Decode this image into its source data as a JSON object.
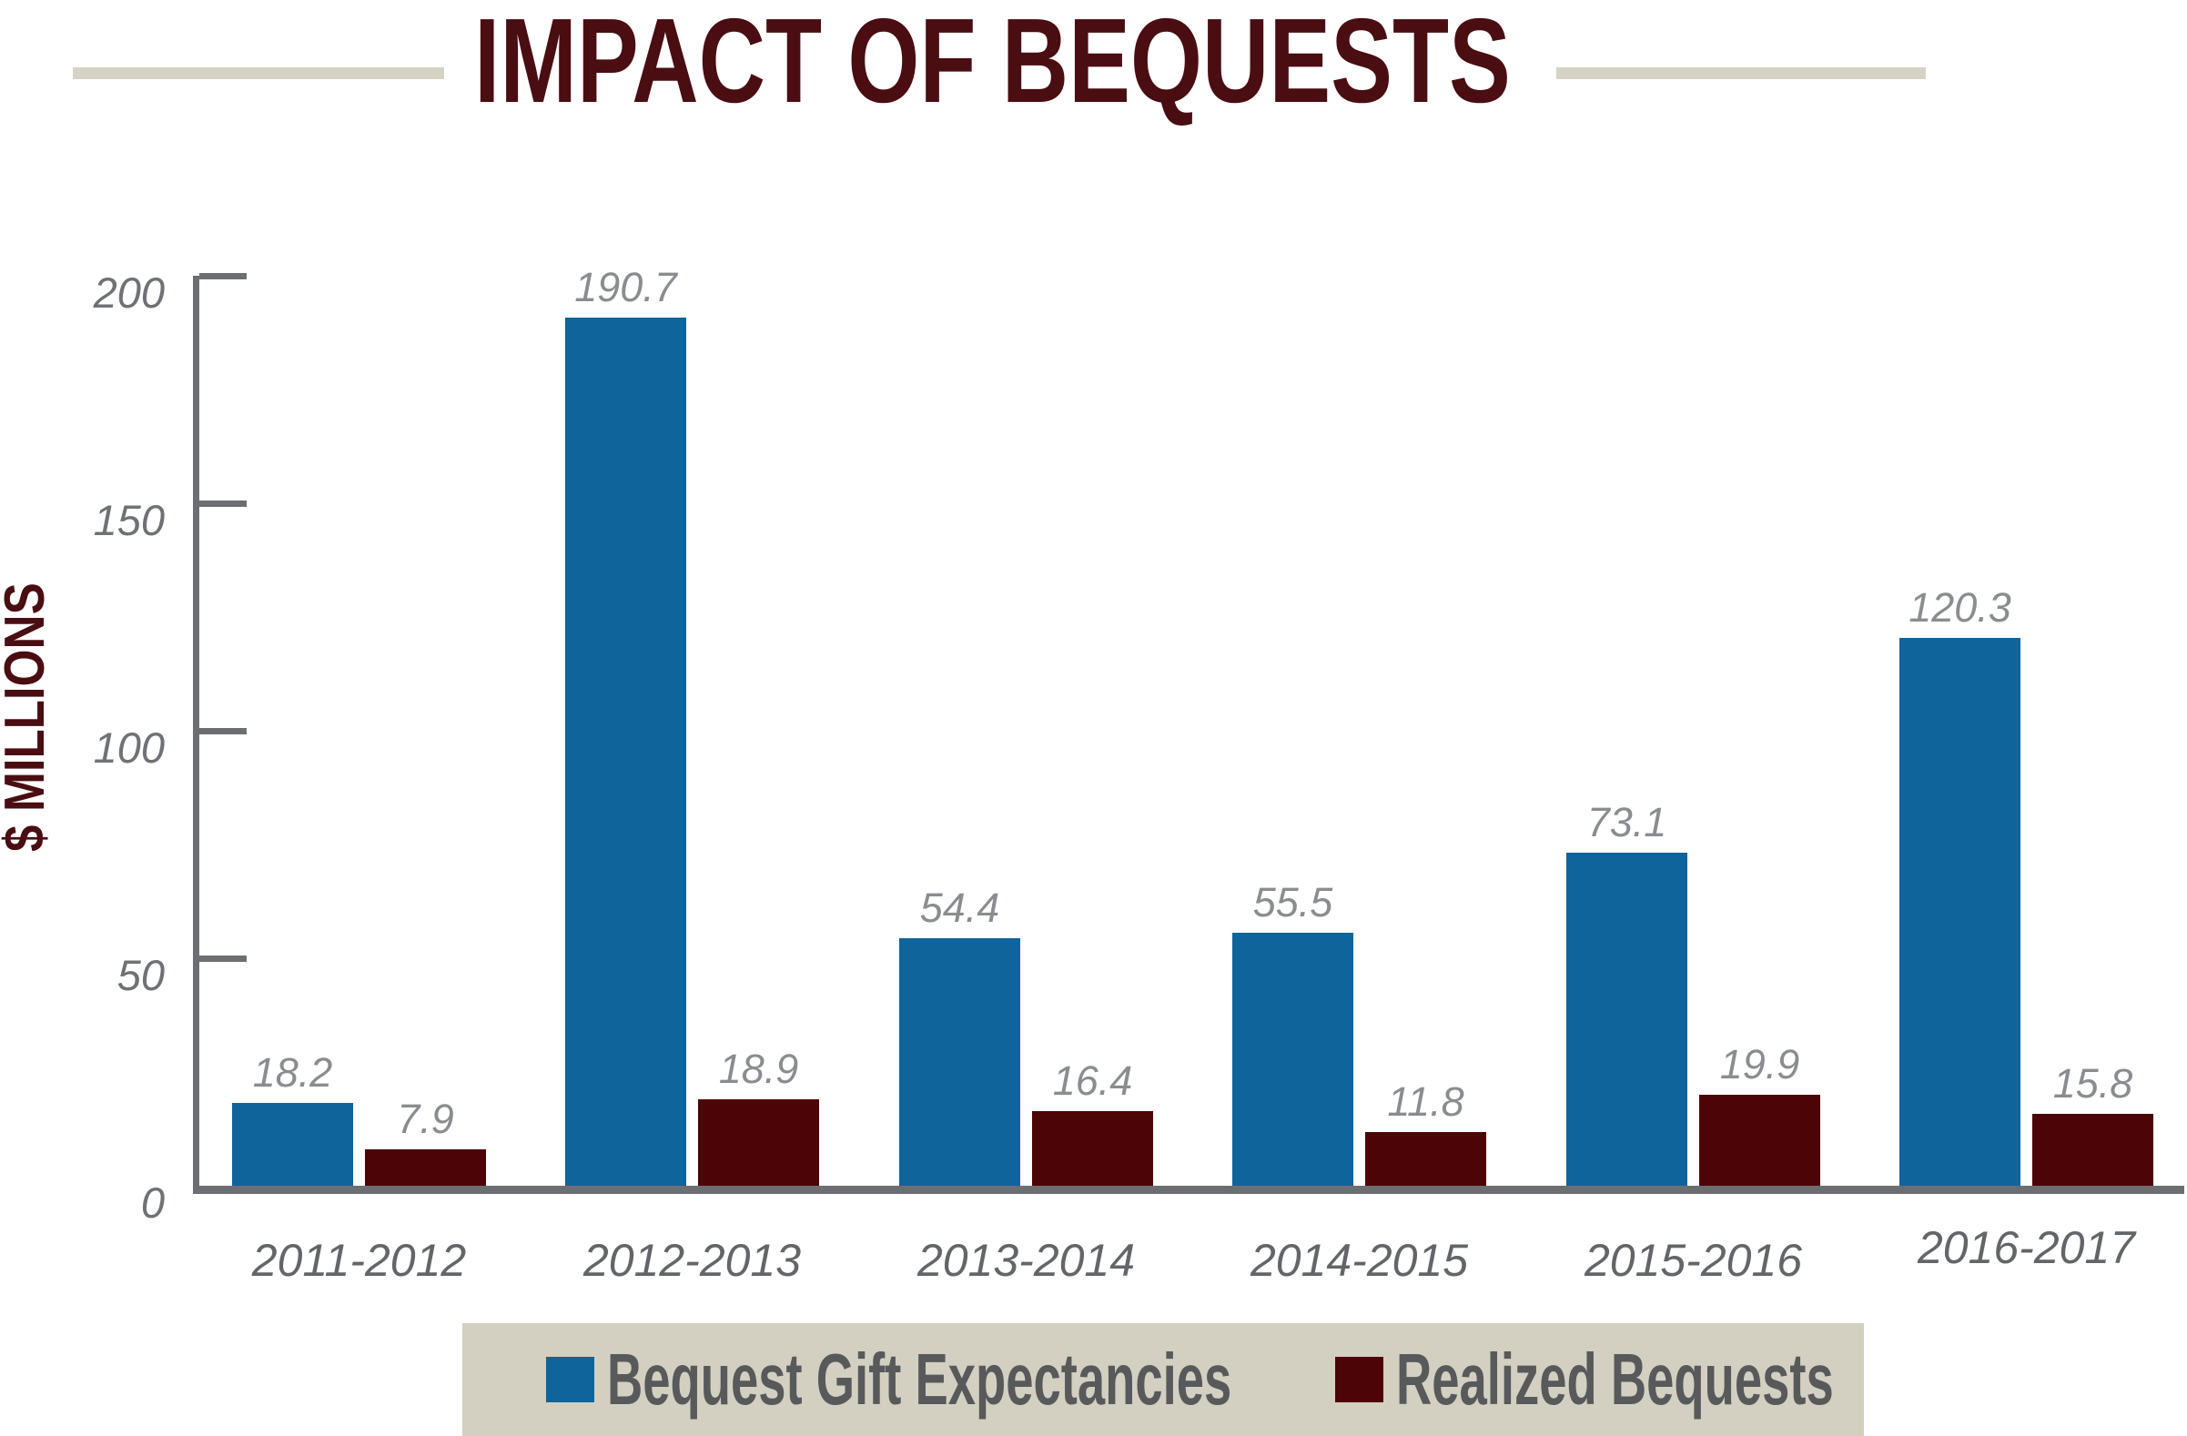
{
  "title": "IMPACT OF BEQUESTS",
  "y_axis_title": "$ MILLIONS",
  "chart_data": {
    "type": "bar",
    "title": "IMPACT OF BEQUESTS",
    "categories": [
      "2011-2012",
      "2012-2013",
      "2013-2014",
      "2014-2015",
      "2015-2016",
      "2016-2017"
    ],
    "series": [
      {
        "name": "Bequest Gift Expectancies",
        "color": "#0f649b",
        "values": [
          18.2,
          190.7,
          54.4,
          55.5,
          73.1,
          120.3
        ]
      },
      {
        "name": "Realized Bequests",
        "color": "#4c0407",
        "values": [
          7.9,
          18.9,
          16.4,
          11.8,
          19.9,
          15.8
        ]
      }
    ],
    "xlabel": "",
    "ylabel": "$ MILLIONS",
    "ylim": [
      0,
      200
    ],
    "yticks": [
      0,
      50,
      100,
      150,
      200
    ],
    "grid": false,
    "value_labels": true,
    "legend_position": "bottom"
  },
  "colors": {
    "blue_series": "#0f649b",
    "maroon_series": "#4c0407",
    "title_text": "#4a0d12",
    "title_rule": "#d6d3c5",
    "axis": "#6d6e71",
    "tick_label": "#6f7174",
    "value_label": "#8a8c8f",
    "category_label": "#636569",
    "legend_background": "#d3d0c2",
    "legend_text": "#58595b",
    "background": "#ffffff"
  }
}
